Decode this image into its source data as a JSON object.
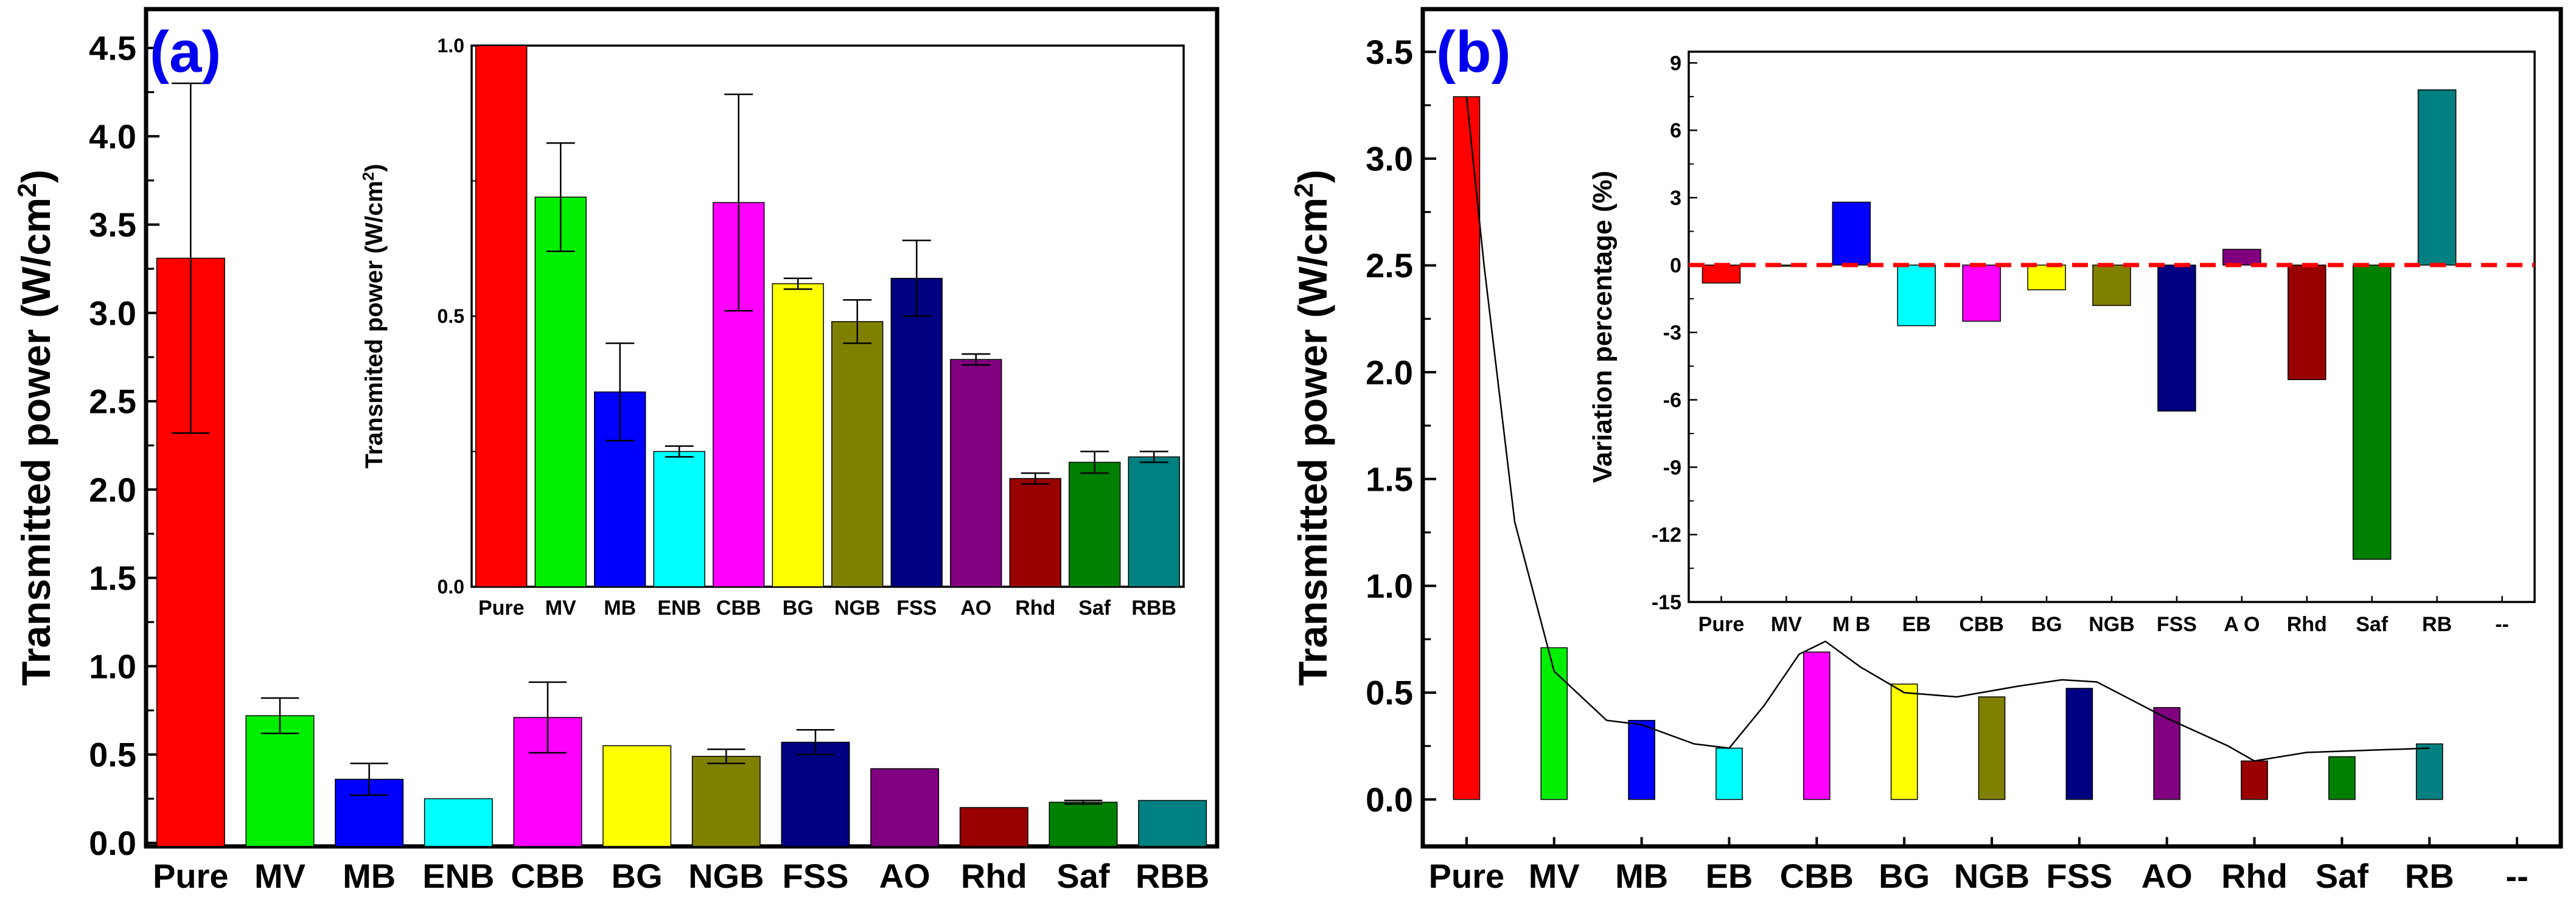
{
  "chart_data": [
    {
      "id": "a",
      "type": "bar",
      "panel_label": "(a)",
      "ylabel_main": "Transmitted power (W/cm",
      "ylabel_sup": "2",
      "ylabel_tail": ")",
      "categories": [
        "Pure",
        "MV",
        "MB",
        "ENB",
        "CBB",
        "BG",
        "NGB",
        "FSS",
        "AO",
        "Rhd",
        "Saf",
        "RBB"
      ],
      "values": [
        3.31,
        0.72,
        0.36,
        0.25,
        0.71,
        0.55,
        0.49,
        0.57,
        0.42,
        0.2,
        0.23,
        0.24
      ],
      "errors": [
        0.99,
        0.1,
        0.09,
        0.0,
        0.2,
        0.0,
        0.04,
        0.07,
        0.0,
        0.0,
        0.01,
        0.0
      ],
      "ylim": [
        -0.02,
        4.72
      ],
      "yticks": [
        0.0,
        0.5,
        1.0,
        1.5,
        2.0,
        2.5,
        3.0,
        3.5,
        4.0,
        4.5
      ],
      "ytick_labels": [
        "0.0",
        "0.5",
        "1.0",
        "1.5",
        "2.0",
        "2.5",
        "3.0",
        "3.5",
        "4.0",
        "4.5"
      ],
      "inset": {
        "type": "bar",
        "ylabel_main": "Transmited power (W/cm",
        "ylabel_sup": "2",
        "ylabel_tail": ")",
        "categories": [
          "Pure",
          "MV",
          "MB",
          "ENB",
          "CBB",
          "BG",
          "NGB",
          "FSS",
          "AO",
          "Rhd",
          "Saf",
          "RBB"
        ],
        "values": [
          1.0,
          0.72,
          0.36,
          0.25,
          0.71,
          0.56,
          0.49,
          0.57,
          0.42,
          0.2,
          0.23,
          0.24
        ],
        "errors": [
          0.0,
          0.1,
          0.09,
          0.01,
          0.2,
          0.01,
          0.04,
          0.07,
          0.01,
          0.01,
          0.02,
          0.01
        ],
        "ylim": [
          0.0,
          1.0
        ],
        "yticks": [
          0.0,
          0.5,
          1.0
        ],
        "ytick_labels": [
          "0.0",
          "0.5",
          "1.0"
        ]
      }
    },
    {
      "id": "b",
      "type": "bar",
      "panel_label": "(b)",
      "ylabel_main": "Transmitted power (W/cm",
      "ylabel_sup": "2",
      "ylabel_tail": ")",
      "categories": [
        "Pure",
        "MV",
        "MB",
        "EB",
        "CBB",
        "BG",
        "NGB",
        "FSS",
        "AO",
        "Rhd",
        "Saf",
        "RB",
        "--"
      ],
      "values": [
        3.29,
        0.71,
        0.37,
        0.24,
        0.69,
        0.54,
        0.48,
        0.52,
        0.43,
        0.18,
        0.2,
        0.26,
        null
      ],
      "curve": [
        [
          0.0,
          3.29
        ],
        [
          0.2,
          2.5
        ],
        [
          0.55,
          1.3
        ],
        [
          1.0,
          0.6
        ],
        [
          1.6,
          0.37
        ],
        [
          2.0,
          0.35
        ],
        [
          2.6,
          0.26
        ],
        [
          3.0,
          0.24
        ],
        [
          3.4,
          0.44
        ],
        [
          3.8,
          0.68
        ],
        [
          4.1,
          0.74
        ],
        [
          4.5,
          0.62
        ],
        [
          5.0,
          0.5
        ],
        [
          5.6,
          0.48
        ],
        [
          6.3,
          0.53
        ],
        [
          6.8,
          0.56
        ],
        [
          7.2,
          0.55
        ],
        [
          8.0,
          0.38
        ],
        [
          8.7,
          0.25
        ],
        [
          9.0,
          0.18
        ],
        [
          9.6,
          0.22
        ],
        [
          10.3,
          0.23
        ],
        [
          11.0,
          0.24
        ]
      ],
      "ylim": [
        -0.22,
        3.7
      ],
      "yticks": [
        0.0,
        0.5,
        1.0,
        1.5,
        2.0,
        2.5,
        3.0,
        3.5
      ],
      "ytick_labels": [
        "0.0",
        "0.5",
        "1.0",
        "1.5",
        "2.0",
        "2.5",
        "3.0",
        "3.5"
      ],
      "inset": {
        "type": "bar",
        "ylabel": "Variation percentage (%)",
        "categories": [
          "Pure",
          "MV",
          "M B",
          "EB",
          "CBB",
          "BG",
          "NGB",
          "FSS",
          "A O",
          "Rhd",
          "Saf",
          "RB",
          "--"
        ],
        "values": [
          -0.8,
          -0.05,
          2.8,
          -2.7,
          -2.5,
          -1.1,
          -1.8,
          -6.5,
          0.7,
          -5.1,
          -13.1,
          7.8,
          null
        ],
        "reference_line": 0,
        "ylim": [
          -15,
          9.5
        ],
        "yticks": [
          -15,
          -12,
          -9,
          -6,
          -3,
          0,
          3,
          6,
          9
        ],
        "ytick_labels": [
          "-15",
          "-12",
          "-9",
          "-6",
          "-3",
          "0",
          "3",
          "6",
          "9"
        ]
      }
    }
  ],
  "colors": {
    "bars": [
      "#ff0000",
      "#00ee00",
      "#0000ff",
      "#00ffff",
      "#ff00ff",
      "#ffff00",
      "#808000",
      "#000080",
      "#800080",
      "#990000",
      "#008000",
      "#008080"
    ],
    "panel_label": "#0000ee",
    "reference_line": "#ff0000",
    "axis": "#000000"
  }
}
